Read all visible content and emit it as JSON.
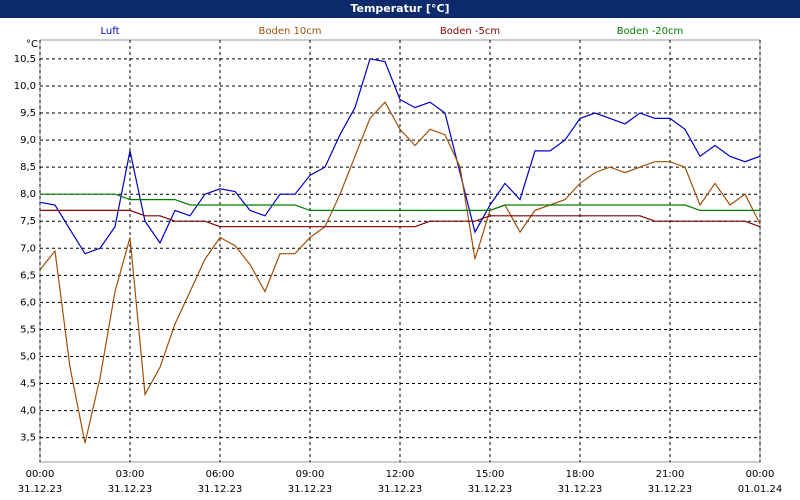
{
  "chart_data": {
    "type": "line",
    "title": "Temperatur [°C]",
    "y_label": "°C",
    "x": [
      0,
      0.5,
      1,
      1.5,
      2,
      2.5,
      3,
      3.5,
      4,
      4.5,
      5,
      5.5,
      6,
      6.5,
      7,
      7.5,
      8,
      8.5,
      9,
      9.5,
      10,
      10.5,
      11,
      11.5,
      12,
      12.5,
      13,
      13.5,
      14,
      14.5,
      15,
      15.5,
      16,
      16.5,
      17,
      17.5,
      18,
      18.5,
      19,
      19.5,
      20,
      20.5,
      21,
      21.5,
      22,
      22.5,
      23,
      23.5,
      24
    ],
    "series": [
      {
        "name": "Luft",
        "color": "#0000c8",
        "values": [
          7.85,
          7.8,
          7.35,
          6.9,
          7.0,
          7.4,
          8.8,
          7.5,
          7.1,
          7.7,
          7.6,
          8.0,
          8.1,
          8.05,
          7.7,
          7.6,
          8.0,
          8.0,
          8.35,
          8.5,
          9.1,
          9.6,
          10.5,
          10.45,
          9.75,
          9.6,
          9.7,
          9.5,
          8.4,
          7.3,
          7.8,
          8.2,
          7.9,
          8.8,
          8.8,
          9.0,
          9.4,
          9.5,
          9.4,
          9.3,
          9.5,
          9.4,
          9.4,
          9.2,
          8.7,
          8.9,
          8.7,
          8.6,
          8.7
        ]
      },
      {
        "name": "Boden 10cm",
        "color": "#a0500a",
        "values": [
          6.6,
          6.95,
          4.8,
          3.4,
          4.6,
          6.2,
          7.2,
          4.3,
          4.8,
          5.6,
          6.2,
          6.8,
          7.2,
          7.05,
          6.7,
          6.2,
          6.9,
          6.9,
          7.2,
          7.4,
          8.0,
          8.7,
          9.4,
          9.7,
          9.2,
          8.9,
          9.2,
          9.1,
          8.5,
          6.8,
          7.7,
          7.8,
          7.3,
          7.7,
          7.8,
          7.9,
          8.2,
          8.4,
          8.5,
          8.4,
          8.5,
          8.6,
          8.6,
          8.5,
          7.8,
          8.2,
          7.8,
          8.0,
          7.45
        ]
      },
      {
        "name": "Boden -5cm",
        "color": "#800000",
        "values": [
          7.7,
          7.7,
          7.7,
          7.7,
          7.7,
          7.7,
          7.7,
          7.6,
          7.6,
          7.5,
          7.5,
          7.5,
          7.4,
          7.4,
          7.4,
          7.4,
          7.4,
          7.4,
          7.4,
          7.4,
          7.4,
          7.4,
          7.4,
          7.4,
          7.4,
          7.4,
          7.5,
          7.5,
          7.5,
          7.5,
          7.6,
          7.6,
          7.6,
          7.6,
          7.6,
          7.6,
          7.6,
          7.6,
          7.6,
          7.6,
          7.6,
          7.5,
          7.5,
          7.5,
          7.5,
          7.5,
          7.5,
          7.5,
          7.4
        ]
      },
      {
        "name": "Boden -20cm",
        "color": "#008000",
        "values": [
          8.0,
          8.0,
          8.0,
          8.0,
          8.0,
          8.0,
          7.9,
          7.9,
          7.9,
          7.9,
          7.8,
          7.8,
          7.8,
          7.8,
          7.8,
          7.8,
          7.8,
          7.8,
          7.7,
          7.7,
          7.7,
          7.7,
          7.7,
          7.7,
          7.7,
          7.7,
          7.7,
          7.7,
          7.7,
          7.7,
          7.7,
          7.8,
          7.8,
          7.8,
          7.8,
          7.8,
          7.8,
          7.8,
          7.8,
          7.8,
          7.8,
          7.8,
          7.8,
          7.8,
          7.7,
          7.7,
          7.7,
          7.7,
          7.7
        ]
      }
    ],
    "xlim": [
      0,
      24
    ],
    "xticks": [
      {
        "value": 0,
        "label": "00:00"
      },
      {
        "value": 3,
        "label": "03:00"
      },
      {
        "value": 6,
        "label": "06:00"
      },
      {
        "value": 9,
        "label": "09:00"
      },
      {
        "value": 12,
        "label": "12:00"
      },
      {
        "value": 15,
        "label": "15:00"
      },
      {
        "value": 18,
        "label": "18:00"
      },
      {
        "value": 21,
        "label": "21:00"
      },
      {
        "value": 24,
        "label": "00:00"
      }
    ],
    "xtick_dates": [
      "31.12.23",
      "31.12.23",
      "31.12.23",
      "31.12.23",
      "31.12.23",
      "31.12.23",
      "31.12.23",
      "31.12.23",
      "01.01.24"
    ],
    "ylim": [
      3.05,
      10.85
    ],
    "yticks": [
      {
        "value": 3.5,
        "label": "3,5"
      },
      {
        "value": 4,
        "label": "4,0"
      },
      {
        "value": 4.5,
        "label": "4,5"
      },
      {
        "value": 5,
        "label": "5,0"
      },
      {
        "value": 5.5,
        "label": "5,5"
      },
      {
        "value": 6,
        "label": "6,0"
      },
      {
        "value": 6.5,
        "label": "6,5"
      },
      {
        "value": 7,
        "label": "7,0"
      },
      {
        "value": 7.5,
        "label": "7,5"
      },
      {
        "value": 8,
        "label": "8,0"
      },
      {
        "value": 8.5,
        "label": "8,5"
      },
      {
        "value": 9,
        "label": "9,0"
      },
      {
        "value": 9.5,
        "label": "9,5"
      },
      {
        "value": 10,
        "label": "10,0"
      },
      {
        "value": 10.5,
        "label": "10,5"
      }
    ],
    "grid": true
  }
}
